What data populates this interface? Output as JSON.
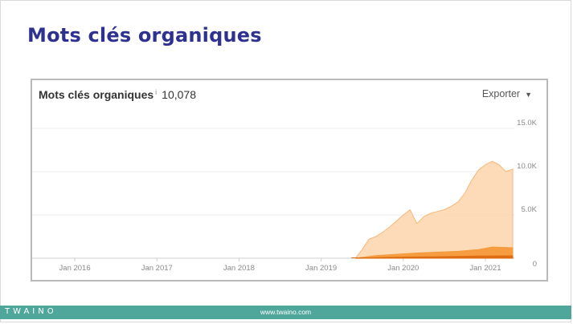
{
  "slide": {
    "title": "Mots clés organiques"
  },
  "widget": {
    "title": "Mots clés organiques",
    "info_icon": "i",
    "value": "10,078",
    "export_label": "Exporter",
    "export_caret": "▼"
  },
  "footer": {
    "brand": "TWAINO",
    "url": "www.twaino.com",
    "color": "#4fa79c"
  },
  "colors": {
    "title": "#2e3190",
    "area_light": "#fdd6b0",
    "area_dark": "#f59a3a",
    "area_darker": "#e06b10"
  },
  "chart_data": {
    "type": "area",
    "x_tick_labels": [
      "Jan 2016",
      "Jan 2017",
      "Jan 2018",
      "Jan 2019",
      "Jan 2020",
      "Jan 2021"
    ],
    "y_tick_labels": [
      "15.0K",
      "10.0K",
      "5.0K",
      "0"
    ],
    "ylim": [
      0,
      15000
    ],
    "x_range": [
      "2015-07",
      "2021-05"
    ],
    "grid": true,
    "series": [
      {
        "x": [
          "2019-06",
          "2019-07",
          "2019-08",
          "2019-09",
          "2019-10",
          "2019-11",
          "2019-12",
          "2020-01",
          "2020-02",
          "2020-03",
          "2020-04",
          "2020-05",
          "2020-06",
          "2020-07",
          "2020-08",
          "2020-09",
          "2020-10",
          "2020-11",
          "2020-12",
          "2021-01",
          "2021-02",
          "2021-03",
          "2021-04",
          "2021-05"
        ],
        "values": [
          0,
          1000,
          2200,
          2500,
          3000,
          3600,
          4300,
          5000,
          5600,
          4000,
          4800,
          5200,
          5400,
          5600,
          6000,
          6500,
          7500,
          9000,
          10200,
          10800,
          11200,
          10800,
          10000,
          10300
        ]
      },
      {
        "x": [
          "2019-06",
          "2019-09",
          "2019-12",
          "2020-03",
          "2020-06",
          "2020-09",
          "2020-12",
          "2021-02",
          "2021-05"
        ],
        "values": [
          0,
          300,
          450,
          600,
          700,
          800,
          1000,
          1300,
          1200
        ]
      },
      {
        "x": [
          "2019-06",
          "2019-12",
          "2020-06",
          "2020-12",
          "2021-05"
        ],
        "values": [
          0,
          120,
          180,
          250,
          280
        ]
      }
    ]
  }
}
